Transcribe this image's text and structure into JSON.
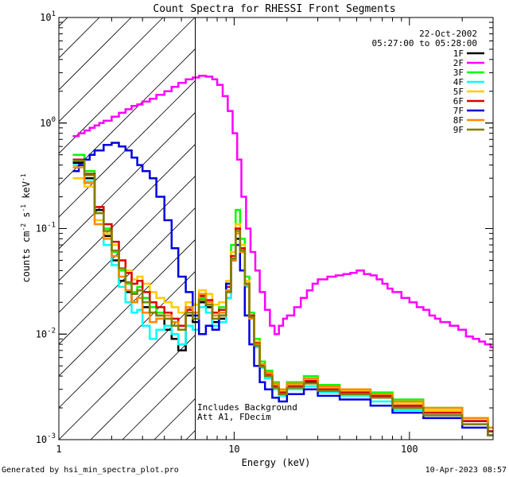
{
  "chart_data": {
    "type": "line",
    "title": "Count Spectra for RHESSI Front Segments",
    "xlabel": "Energy (keV)",
    "ylabel_base": "counts cm",
    "ylabel_exp1": "-2",
    "ylabel_mid": " s",
    "ylabel_exp2": "-1",
    "ylabel_end": " keV",
    "ylabel_exp3": "-1",
    "xscale": "log",
    "yscale": "log",
    "xlim": [
      1,
      300
    ],
    "ylim": [
      0.001,
      10
    ],
    "x_ticks": [
      {
        "value": 1,
        "label": "1"
      },
      {
        "value": 10,
        "label": "10"
      },
      {
        "value": 100,
        "label": "100"
      }
    ],
    "y_ticks": [
      {
        "value": 0.001,
        "base": "10",
        "exp": "-3"
      },
      {
        "value": 0.01,
        "base": "10",
        "exp": "-2"
      },
      {
        "value": 0.1,
        "base": "10",
        "exp": "-1"
      },
      {
        "value": 1,
        "base": "10",
        "exp": "0"
      },
      {
        "value": 10,
        "base": "10",
        "exp": "1"
      }
    ],
    "hatch_region": {
      "xmin": 1,
      "xmax": 6
    },
    "date": "22-Oct-2002",
    "time_range": "05:27:00 to 05:28:00",
    "annotations": [
      "Includes Background",
      "Att A1, FDecim"
    ],
    "legend_position": "top-right",
    "series": [
      {
        "name": "1F",
        "color": "#000000",
        "x": [
          1.2,
          1.4,
          1.6,
          1.8,
          2,
          2.2,
          2.4,
          2.6,
          2.8,
          3,
          3.3,
          3.6,
          4,
          4.4,
          4.8,
          5.3,
          5.8,
          6.3,
          6.9,
          7.5,
          8.2,
          9,
          9.6,
          10.2,
          10.8,
          11.5,
          12.2,
          13,
          14,
          15,
          16.5,
          18,
          20,
          25,
          30,
          40,
          60,
          80,
          120,
          200,
          280
        ],
        "values": [
          0.42,
          0.3,
          0.15,
          0.085,
          0.05,
          0.032,
          0.025,
          0.02,
          0.022,
          0.018,
          0.016,
          0.015,
          0.011,
          0.009,
          0.007,
          0.015,
          0.013,
          0.02,
          0.018,
          0.013,
          0.014,
          0.025,
          0.05,
          0.08,
          0.06,
          0.03,
          0.015,
          0.008,
          0.005,
          0.004,
          0.003,
          0.0028,
          0.0032,
          0.0035,
          0.003,
          0.0028,
          0.0025,
          0.002,
          0.0018,
          0.0015,
          0.0012
        ]
      },
      {
        "name": "2F",
        "color": "#ff00ff",
        "x": [
          1.2,
          1.3,
          1.4,
          1.5,
          1.6,
          1.7,
          1.8,
          2,
          2.2,
          2.4,
          2.6,
          2.8,
          3,
          3.3,
          3.6,
          4,
          4.4,
          4.8,
          5.3,
          5.8,
          6.3,
          6.9,
          7.5,
          8,
          8.6,
          9.2,
          9.8,
          10.4,
          11,
          11.7,
          12.4,
          13.2,
          14,
          15,
          16,
          17,
          18,
          19,
          20,
          22,
          24,
          26,
          28,
          30,
          34,
          38,
          42,
          46,
          50,
          55,
          60,
          65,
          70,
          75,
          80,
          90,
          100,
          110,
          120,
          130,
          140,
          150,
          170,
          190,
          210,
          230,
          250,
          270,
          290
        ],
        "values": [
          0.75,
          0.8,
          0.85,
          0.9,
          0.95,
          1.0,
          1.05,
          1.15,
          1.25,
          1.35,
          1.45,
          1.5,
          1.6,
          1.7,
          1.85,
          2.0,
          2.2,
          2.4,
          2.6,
          2.7,
          2.8,
          2.75,
          2.6,
          2.3,
          1.8,
          1.3,
          0.8,
          0.45,
          0.2,
          0.1,
          0.06,
          0.04,
          0.025,
          0.017,
          0.012,
          0.01,
          0.012,
          0.014,
          0.015,
          0.018,
          0.022,
          0.026,
          0.03,
          0.033,
          0.035,
          0.036,
          0.037,
          0.038,
          0.04,
          0.037,
          0.036,
          0.033,
          0.03,
          0.027,
          0.025,
          0.022,
          0.02,
          0.018,
          0.017,
          0.015,
          0.014,
          0.013,
          0.012,
          0.011,
          0.0095,
          0.009,
          0.0085,
          0.008,
          0.0075
        ]
      },
      {
        "name": "3F",
        "color": "#00ff00",
        "x": [
          1.2,
          1.4,
          1.6,
          1.8,
          2,
          2.2,
          2.4,
          2.6,
          2.8,
          3,
          3.3,
          3.6,
          4,
          4.4,
          4.8,
          5.3,
          5.8,
          6.3,
          6.9,
          7.5,
          8.2,
          9,
          9.6,
          10.2,
          10.8,
          11.5,
          12.2,
          13,
          14,
          15,
          16.5,
          18,
          20,
          25,
          30,
          40,
          60,
          80,
          120,
          200,
          280
        ],
        "values": [
          0.5,
          0.35,
          0.14,
          0.1,
          0.06,
          0.04,
          0.03,
          0.025,
          0.028,
          0.022,
          0.018,
          0.016,
          0.014,
          0.013,
          0.012,
          0.016,
          0.015,
          0.022,
          0.02,
          0.016,
          0.018,
          0.03,
          0.07,
          0.15,
          0.08,
          0.035,
          0.016,
          0.009,
          0.0055,
          0.0045,
          0.0035,
          0.003,
          0.0035,
          0.004,
          0.0033,
          0.003,
          0.0028,
          0.0024,
          0.002,
          0.0016,
          0.0013
        ]
      },
      {
        "name": "4F",
        "color": "#00ffff",
        "x": [
          1.2,
          1.4,
          1.6,
          1.8,
          2,
          2.2,
          2.4,
          2.6,
          2.8,
          3,
          3.3,
          3.6,
          4,
          4.4,
          4.8,
          5.3,
          5.8,
          6.3,
          6.9,
          7.5,
          8.2,
          9,
          9.6,
          10.2,
          10.8,
          11.5,
          12.2,
          13,
          14,
          15,
          16.5,
          18,
          20,
          25,
          30,
          40,
          60,
          80,
          120,
          200,
          280
        ],
        "values": [
          0.4,
          0.28,
          0.12,
          0.07,
          0.045,
          0.028,
          0.02,
          0.016,
          0.017,
          0.012,
          0.009,
          0.011,
          0.012,
          0.01,
          0.008,
          0.012,
          0.011,
          0.018,
          0.016,
          0.012,
          0.013,
          0.022,
          0.05,
          0.09,
          0.06,
          0.028,
          0.014,
          0.0075,
          0.0048,
          0.0038,
          0.003,
          0.0026,
          0.003,
          0.0032,
          0.0028,
          0.0026,
          0.0023,
          0.0019,
          0.0017,
          0.0014,
          0.0011
        ]
      },
      {
        "name": "5F",
        "color": "#ffcc00",
        "x": [
          1.2,
          1.4,
          1.6,
          1.8,
          2,
          2.2,
          2.4,
          2.6,
          2.8,
          3,
          3.3,
          3.6,
          4,
          4.4,
          4.8,
          5.3,
          5.8,
          6.3,
          6.9,
          7.5,
          8.2,
          9,
          9.6,
          10.2,
          10.8,
          11.5,
          12.2,
          13,
          14,
          15,
          16.5,
          18,
          20,
          25,
          30,
          40,
          60,
          80,
          120,
          200,
          280
        ],
        "values": [
          0.3,
          0.25,
          0.12,
          0.09,
          0.07,
          0.05,
          0.04,
          0.033,
          0.035,
          0.03,
          0.025,
          0.022,
          0.02,
          0.018,
          0.016,
          0.02,
          0.019,
          0.026,
          0.024,
          0.019,
          0.02,
          0.032,
          0.06,
          0.11,
          0.07,
          0.032,
          0.015,
          0.0085,
          0.005,
          0.0042,
          0.0033,
          0.0029,
          0.0033,
          0.0037,
          0.0031,
          0.0029,
          0.0027,
          0.0022,
          0.0019,
          0.0016,
          0.0013
        ]
      },
      {
        "name": "6F",
        "color": "#dd0000",
        "x": [
          1.2,
          1.4,
          1.6,
          1.8,
          2,
          2.2,
          2.4,
          2.6,
          2.8,
          3,
          3.3,
          3.6,
          4,
          4.4,
          4.8,
          5.3,
          5.8,
          6.3,
          6.9,
          7.5,
          8.2,
          9,
          9.6,
          10.2,
          10.8,
          11.5,
          12.2,
          13,
          14,
          15,
          16.5,
          18,
          20,
          25,
          30,
          40,
          60,
          80,
          120,
          200,
          280
        ],
        "values": [
          0.45,
          0.33,
          0.16,
          0.11,
          0.075,
          0.05,
          0.038,
          0.03,
          0.032,
          0.025,
          0.02,
          0.018,
          0.016,
          0.014,
          0.012,
          0.017,
          0.016,
          0.023,
          0.021,
          0.016,
          0.017,
          0.028,
          0.055,
          0.1,
          0.065,
          0.03,
          0.015,
          0.0082,
          0.005,
          0.0041,
          0.0032,
          0.0028,
          0.0032,
          0.0036,
          0.003,
          0.0028,
          0.0026,
          0.0021,
          0.0018,
          0.0015,
          0.0012
        ]
      },
      {
        "name": "7F",
        "color": "#0000dd",
        "x": [
          1.2,
          1.3,
          1.4,
          1.5,
          1.6,
          1.8,
          2,
          2.2,
          2.4,
          2.6,
          2.8,
          3,
          3.3,
          3.6,
          4,
          4.4,
          4.8,
          5.3,
          5.8,
          6.3,
          6.9,
          7.5,
          8.2,
          9,
          9.6,
          10.2,
          10.8,
          11.5,
          12.2,
          13,
          14,
          15,
          16.5,
          18,
          20,
          25,
          30,
          40,
          60,
          80,
          120,
          200,
          280
        ],
        "values": [
          0.35,
          0.4,
          0.45,
          0.5,
          0.55,
          0.62,
          0.65,
          0.6,
          0.55,
          0.47,
          0.4,
          0.35,
          0.3,
          0.2,
          0.12,
          0.065,
          0.035,
          0.025,
          0.015,
          0.01,
          0.012,
          0.011,
          0.015,
          0.03,
          0.05,
          0.07,
          0.04,
          0.015,
          0.008,
          0.005,
          0.0035,
          0.003,
          0.0025,
          0.0023,
          0.0027,
          0.003,
          0.0026,
          0.0024,
          0.0021,
          0.0018,
          0.0016,
          0.0013,
          0.0011
        ]
      },
      {
        "name": "8F",
        "color": "#ff8800",
        "x": [
          1.2,
          1.4,
          1.6,
          1.8,
          2,
          2.2,
          2.4,
          2.6,
          2.8,
          3,
          3.3,
          3.6,
          4,
          4.4,
          4.8,
          5.3,
          5.8,
          6.3,
          6.9,
          7.5,
          8.2,
          9,
          9.6,
          10.2,
          10.8,
          11.5,
          12.2,
          13,
          14,
          15,
          16.5,
          18,
          20,
          25,
          30,
          40,
          60,
          80,
          120,
          200,
          280
        ],
        "values": [
          0.38,
          0.27,
          0.11,
          0.08,
          0.055,
          0.035,
          0.026,
          0.02,
          0.022,
          0.016,
          0.013,
          0.014,
          0.015,
          0.013,
          0.011,
          0.018,
          0.016,
          0.024,
          0.02,
          0.015,
          0.016,
          0.026,
          0.05,
          0.09,
          0.06,
          0.029,
          0.014,
          0.008,
          0.0052,
          0.0043,
          0.0034,
          0.003,
          0.0034,
          0.0038,
          0.0032,
          0.003,
          0.0027,
          0.0023,
          0.002,
          0.0016,
          0.0013
        ]
      },
      {
        "name": "9F",
        "color": "#808000",
        "x": [
          1.2,
          1.4,
          1.6,
          1.8,
          2,
          2.2,
          2.4,
          2.6,
          2.8,
          3,
          3.3,
          3.6,
          4,
          4.4,
          4.8,
          5.3,
          5.8,
          6.3,
          6.9,
          7.5,
          8.2,
          9,
          9.6,
          10.2,
          10.8,
          11.5,
          12.2,
          13,
          14,
          15,
          16.5,
          18,
          20,
          25,
          30,
          40,
          60,
          80,
          120,
          200,
          280
        ],
        "values": [
          0.44,
          0.32,
          0.14,
          0.095,
          0.062,
          0.042,
          0.031,
          0.024,
          0.026,
          0.02,
          0.016,
          0.015,
          0.014,
          0.012,
          0.011,
          0.016,
          0.014,
          0.021,
          0.019,
          0.014,
          0.015,
          0.025,
          0.052,
          0.095,
          0.062,
          0.03,
          0.0145,
          0.0078,
          0.0049,
          0.004,
          0.0031,
          0.0027,
          0.0031,
          0.0034,
          0.0029,
          0.0027,
          0.0025,
          0.002,
          0.0017,
          0.0014,
          0.0011
        ]
      }
    ]
  },
  "footer": {
    "left": "Generated by hsi_min_spectra_plot.pro",
    "right": "10-Apr-2023 08:57"
  }
}
